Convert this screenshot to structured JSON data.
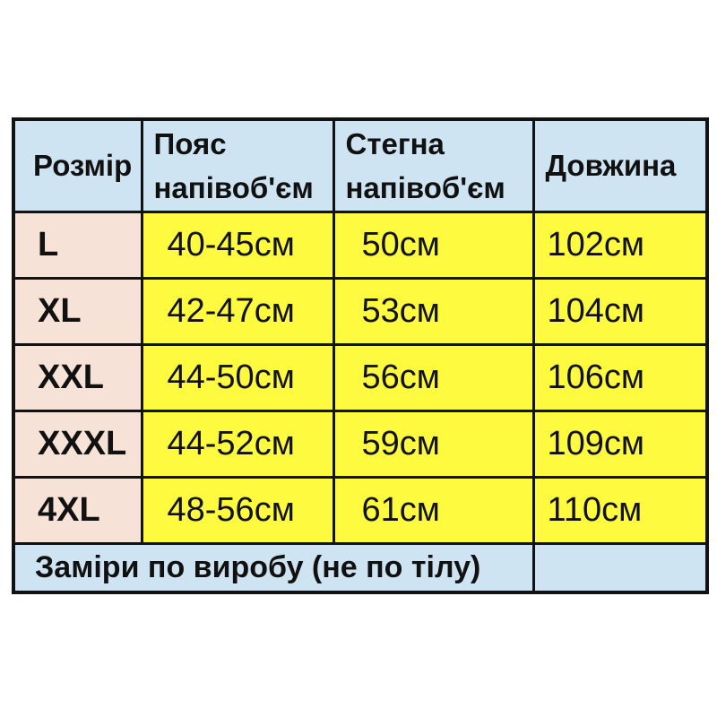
{
  "colors": {
    "page_background": "#ffffff",
    "header_bg": "#cfe4f2",
    "size_column_bg": "#f6e2d6",
    "value_bg": "#fdfa40",
    "footer_bg": "#cfe4f2",
    "border": "#121212",
    "text": "#111111"
  },
  "table": {
    "headers": [
      "Розмір",
      "Пояс напівоб'єм",
      "Стегна напівоб'єм",
      "Довжина"
    ],
    "rows": [
      {
        "size": "L",
        "waist": "40-45см",
        "hips": "50см",
        "length": "102см"
      },
      {
        "size": "XL",
        "waist": "42-47см",
        "hips": "53см",
        "length": "104см"
      },
      {
        "size": "XXL",
        "waist": "44-50см",
        "hips": "56см",
        "length": "106см"
      },
      {
        "size": "XXXL",
        "waist": "44-52см",
        "hips": "59см",
        "length": "109см"
      },
      {
        "size": "4XL",
        "waist": "48-56см",
        "hips": "61см",
        "length": "110см"
      }
    ],
    "footer_note": "Заміри по виробу (не по тілу)"
  }
}
